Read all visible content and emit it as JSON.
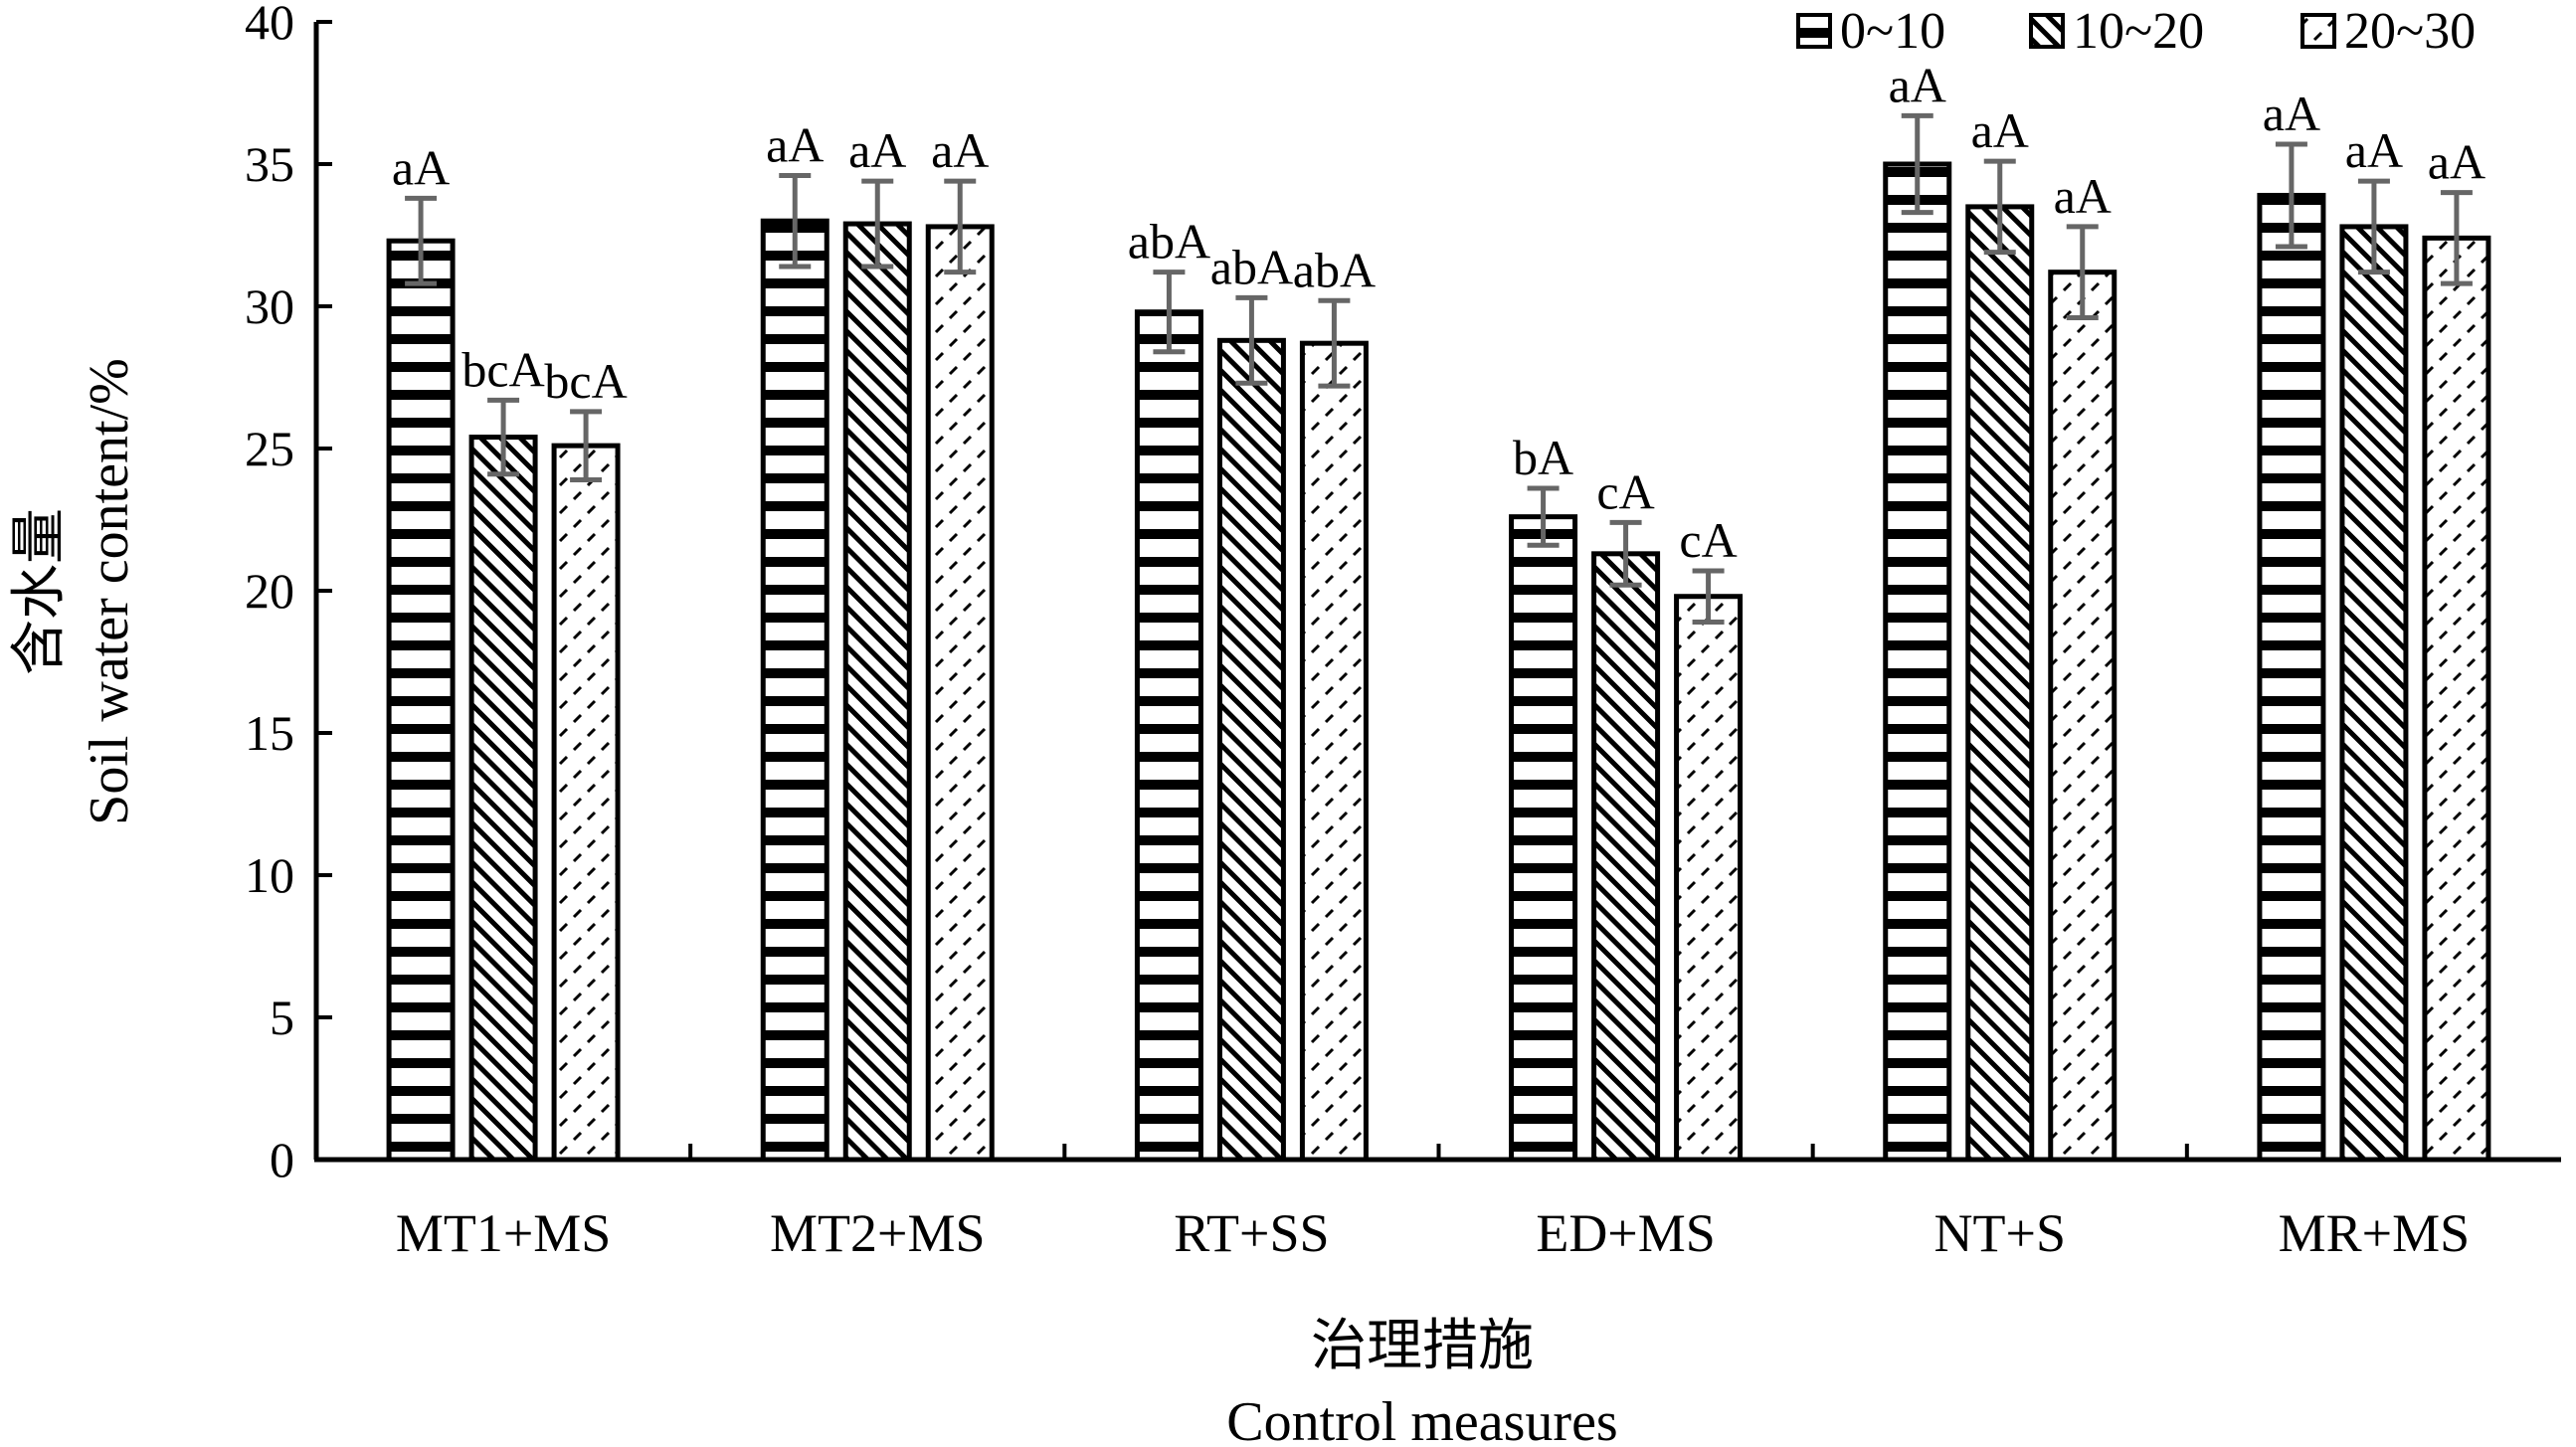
{
  "chart_data": {
    "type": "bar",
    "categories": [
      "MT1+MS",
      "MT2+MS",
      "RT+SS",
      "ED+MS",
      "NT+S",
      "MR+MS"
    ],
    "series": [
      {
        "name": "0~10",
        "values": [
          32.3,
          33.0,
          29.8,
          22.6,
          35.0,
          33.9
        ],
        "errors": [
          1.5,
          1.6,
          1.4,
          1.0,
          1.7,
          1.8
        ],
        "labels": [
          "aA",
          "aA",
          "abA",
          "bA",
          "aA",
          "aA"
        ]
      },
      {
        "name": "10~20",
        "values": [
          25.4,
          32.9,
          28.8,
          21.3,
          33.5,
          32.8
        ],
        "errors": [
          1.3,
          1.5,
          1.5,
          1.1,
          1.6,
          1.6
        ],
        "labels": [
          "bcA",
          "aA",
          "abA",
          "cA",
          "aA",
          "aA"
        ]
      },
      {
        "name": "20~30",
        "values": [
          25.1,
          32.8,
          28.7,
          19.8,
          31.2,
          32.4
        ],
        "errors": [
          1.2,
          1.6,
          1.5,
          0.9,
          1.6,
          1.6
        ],
        "labels": [
          "bcA",
          "aA",
          "abA",
          "cA",
          "aA",
          "aA"
        ]
      }
    ],
    "y_ticks": [
      "0",
      "5",
      "10",
      "15",
      "20",
      "25",
      "30",
      "35",
      "40"
    ],
    "ylim": [
      0,
      40
    ],
    "ylabel_cn": "含水量",
    "ylabel_en": "Soil water content/%",
    "xlabel_cn": "治理措施",
    "xlabel_en": "Control measures",
    "legend_position": "top-right",
    "grid": false
  }
}
